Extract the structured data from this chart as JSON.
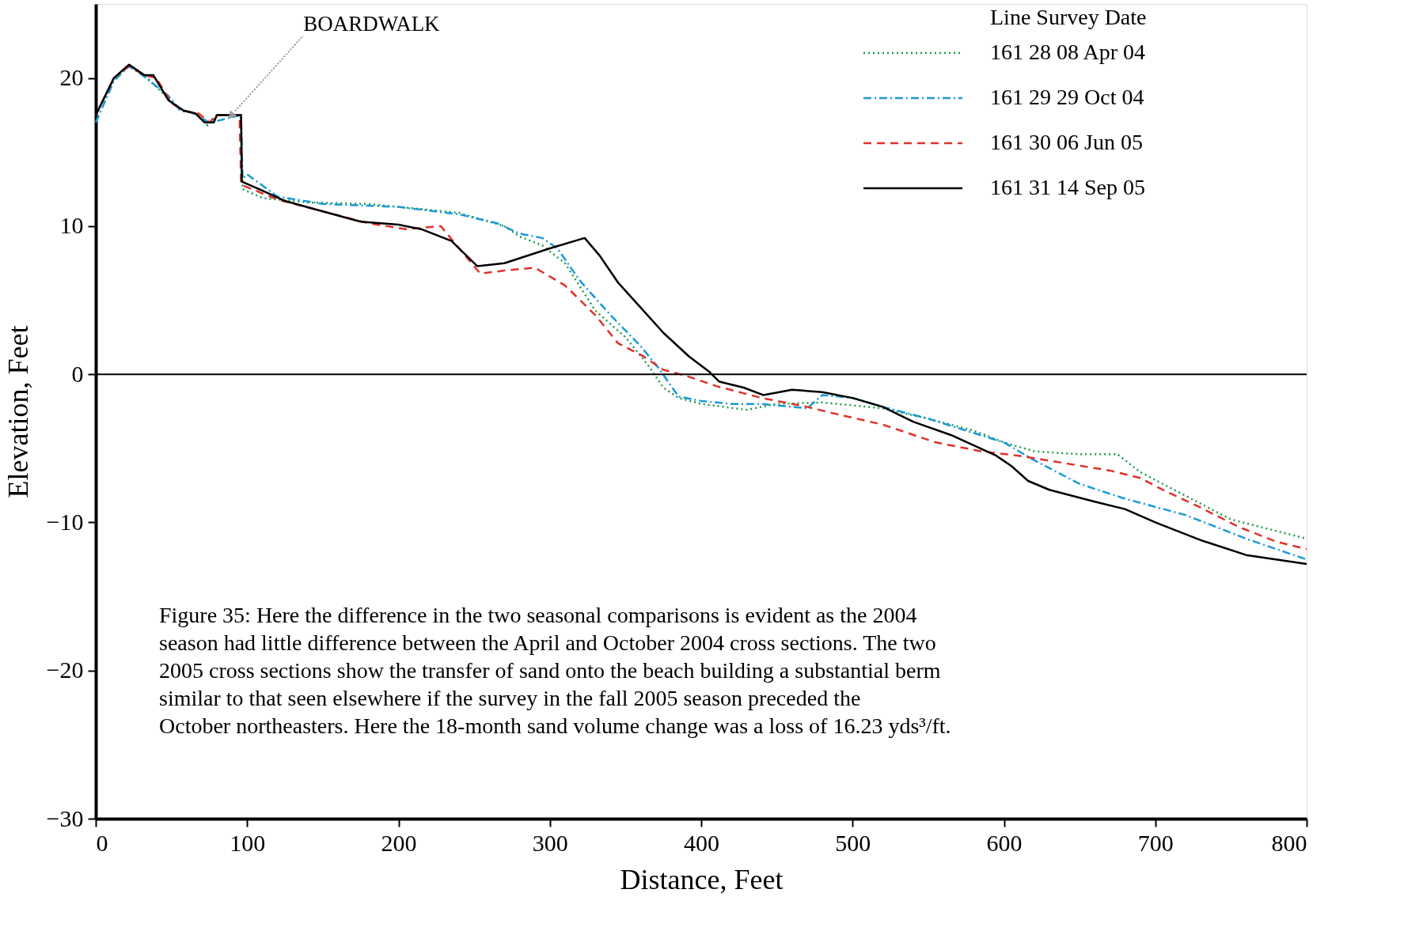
{
  "chart_data": {
    "type": "line",
    "xlabel": "Distance, Feet",
    "ylabel": "Elevation, Feet",
    "xlim": [
      0,
      800
    ],
    "xticks": [
      0,
      100,
      200,
      300,
      400,
      500,
      600,
      700,
      800
    ],
    "ylim": [
      -30,
      25
    ],
    "yticks": [
      -30,
      -20,
      -10,
      0,
      10,
      20
    ],
    "grid": false,
    "legend": "top right",
    "legend_title": "Line Survey Date",
    "ref_lines": [
      {
        "axis": "y",
        "value": 0,
        "color": "#000000"
      }
    ],
    "annotations": [
      {
        "text": "BOARDWALK",
        "x": 90,
        "y": 17.5
      },
      "Figure 35: Here the difference in the two seasonal comparisons is evident as the 2004 season had little difference between the April and October 2004 cross sections. The two 2005 cross sections show the transfer of sand onto the beach building a substantial berm similar to that seen elsewhere if the survey in the fall 2005 season preceded the October northeasters. Here the 18-month sand volume change was a loss of 16.23 yds³/ft."
    ],
    "series": [
      {
        "name": "161 28 08 Apr 04",
        "color": "#1f9a4e",
        "line_style": "dotted",
        "x": [
          0,
          12,
          22,
          32,
          48,
          56,
          66,
          74,
          80,
          96,
          97,
          110,
          140,
          180,
          220,
          240,
          270,
          280,
          295,
          310,
          330,
          350,
          365,
          375,
          385,
          400,
          430,
          450,
          480,
          520,
          550,
          580,
          600,
          620,
          650,
          675,
          690,
          720,
          750,
          800
        ],
        "values": [
          17.5,
          20,
          20.9,
          20.2,
          18.6,
          17.8,
          17.6,
          16.8,
          17.5,
          17.5,
          12.5,
          11.9,
          11.6,
          11.5,
          11.1,
          10.9,
          10,
          9.3,
          8.7,
          7.5,
          4.3,
          2.5,
          0.6,
          -0.9,
          -1.6,
          -2,
          -2.4,
          -2,
          -1.9,
          -2.3,
          -3,
          -3.8,
          -4.6,
          -5.2,
          -5.4,
          -5.4,
          -6.6,
          -8.2,
          -9.8,
          -11.1
        ]
      },
      {
        "name": "161 29 29 Oct 04",
        "color": "#1a9ad6",
        "line_style": "dashdot",
        "x": [
          0,
          12,
          22,
          32,
          48,
          55,
          65,
          75,
          80,
          96,
          97,
          100,
          120,
          150,
          200,
          240,
          265,
          280,
          295,
          305,
          320,
          340,
          360,
          372,
          385,
          400,
          420,
          440,
          470,
          480,
          500,
          520,
          550,
          575,
          600,
          620,
          650,
          680,
          720,
          760,
          800
        ],
        "values": [
          17,
          19.8,
          20.8,
          20.1,
          18.8,
          17.9,
          17.6,
          17,
          17.1,
          17.5,
          13.2,
          13.5,
          12,
          11.5,
          11.3,
          10.8,
          10.2,
          9.5,
          9.2,
          8.5,
          6.3,
          4,
          1.9,
          0.4,
          -1.5,
          -1.8,
          -2,
          -2,
          -2.3,
          -1.4,
          -1.6,
          -2.2,
          -3,
          -3.8,
          -4.6,
          -5.8,
          -7.4,
          -8.4,
          -9.5,
          -11.1,
          -12.5
        ]
      },
      {
        "name": "161 30 06 Jun 05",
        "color": "#e0302a",
        "line_style": "dashed",
        "x": [
          0,
          12,
          22,
          32,
          40,
          50,
          58,
          68,
          75,
          80,
          95,
          96,
          120,
          150,
          180,
          205,
          228,
          240,
          254,
          270,
          290,
          310,
          330,
          345,
          362,
          375,
          390,
          410,
          440,
          470,
          490,
          520,
          555,
          585,
          610,
          640,
          670,
          690,
          705,
          730,
          755,
          780,
          800
        ],
        "values": [
          17.5,
          20,
          20.8,
          20.2,
          20,
          18.3,
          17.8,
          17.6,
          17,
          17.5,
          17.5,
          12.8,
          11.8,
          11,
          10.2,
          9.8,
          10,
          8.5,
          6.8,
          7,
          7.2,
          6,
          4,
          2.1,
          1.2,
          0.3,
          -0.1,
          -0.8,
          -1.6,
          -2.2,
          -2.7,
          -3.4,
          -4.6,
          -5.2,
          -5.5,
          -6,
          -6.5,
          -7,
          -7.8,
          -9,
          -10.3,
          -11.3,
          -11.8
        ]
      },
      {
        "name": "161 31 14 Sep 05",
        "color": "#000000",
        "line_style": "solid",
        "x": [
          0,
          12,
          22,
          32,
          38,
          48,
          58,
          66,
          72,
          78,
          80,
          90,
          96,
          96.5,
          110,
          125,
          150,
          175,
          200,
          215,
          235,
          252,
          270,
          300,
          323,
          333,
          345,
          360,
          375,
          392,
          405,
          412,
          428,
          441,
          460,
          480,
          500,
          520,
          540,
          565,
          595,
          605,
          616,
          630,
          660,
          680,
          700,
          730,
          760,
          800
        ],
        "values": [
          17.5,
          20,
          20.9,
          20.2,
          20.2,
          18.5,
          17.8,
          17.6,
          17,
          17,
          17.5,
          17.5,
          17.5,
          13,
          12.4,
          11.7,
          11,
          10.3,
          10.1,
          9.8,
          9,
          7.3,
          7.5,
          8.5,
          9.2,
          8,
          6.2,
          4.5,
          2.8,
          1.2,
          0.2,
          -0.5,
          -0.9,
          -1.4,
          -1.05,
          -1.2,
          -1.6,
          -2.2,
          -3.2,
          -4.1,
          -5.5,
          -6.2,
          -7.2,
          -7.8,
          -8.6,
          -9.1,
          -10,
          -11.2,
          -12.2,
          -12.8
        ]
      }
    ]
  }
}
